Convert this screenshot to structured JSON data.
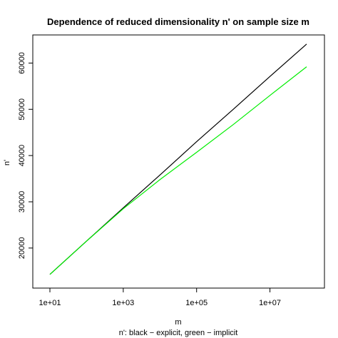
{
  "chart_data": {
    "type": "line",
    "title": "Dependence of reduced dimensionality n' on sample size m",
    "xlabel": "m",
    "ylabel": "n'",
    "subtitle": "n': black − explicit, green − implicit",
    "x_scale": "log10",
    "xlim": [
      10,
      100000000
    ],
    "ylim": [
      13500,
      65000
    ],
    "x_ticks": [
      {
        "value": 10,
        "label": "1e+01"
      },
      {
        "value": 1000,
        "label": "1e+03"
      },
      {
        "value": 100000,
        "label": "1e+05"
      },
      {
        "value": 10000000,
        "label": "1e+07"
      }
    ],
    "y_ticks": [
      {
        "value": 20000,
        "label": "20000"
      },
      {
        "value": 30000,
        "label": "30000"
      },
      {
        "value": 40000,
        "label": "40000"
      },
      {
        "value": 50000,
        "label": "50000"
      },
      {
        "value": 60000,
        "label": "60000"
      }
    ],
    "grid": false,
    "series": [
      {
        "color": "#000000",
        "x": [
          10,
          100,
          1000,
          10000,
          100000,
          1000000,
          10000000,
          100000000
        ],
        "y": [
          14300,
          21500,
          28700,
          35800,
          43000,
          50000,
          57100,
          64100
        ]
      },
      {
        "color": "#00ee00",
        "x": [
          10,
          100,
          1000,
          10000,
          100000,
          1000000,
          10000000,
          100000000
        ],
        "y": [
          14300,
          21500,
          28500,
          34800,
          40700,
          46700,
          53000,
          59200
        ]
      }
    ]
  }
}
